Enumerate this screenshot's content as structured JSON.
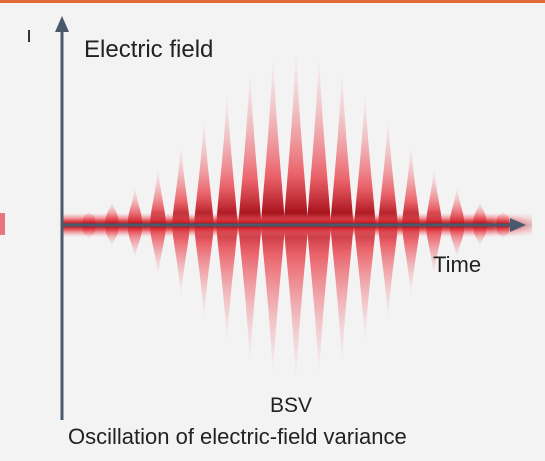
{
  "diagram": {
    "y_axis_label": "Electric field",
    "x_axis_label": "Time",
    "center_label": "BSV",
    "caption": "Oscillation of electric-field variance"
  },
  "colors": {
    "background": "#f3f3f4",
    "axis": "#4a5a6c",
    "field": "#d8101c",
    "core": "#7a0c10",
    "top_border": "#e26a3a"
  }
}
